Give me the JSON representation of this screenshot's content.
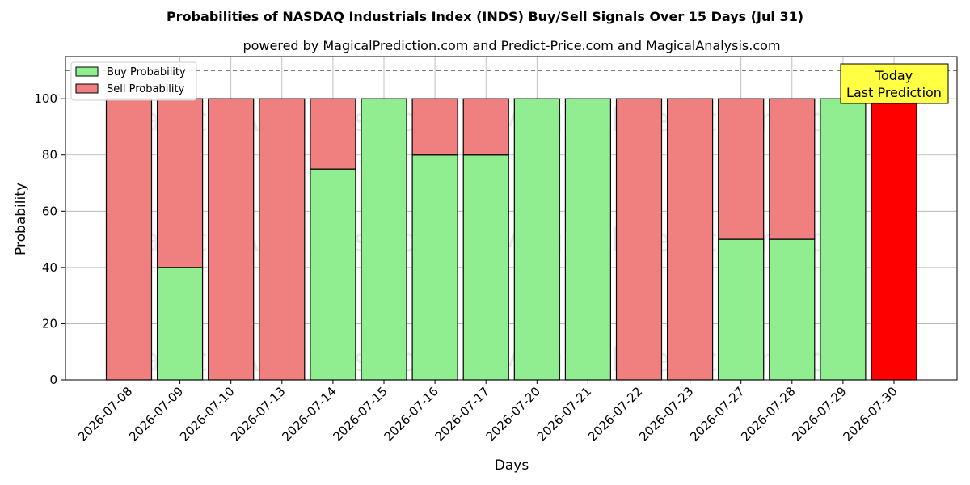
{
  "chart_data": {
    "type": "bar",
    "stacked": true,
    "title": "Probabilities of NASDAQ Industrials Index (INDS) Buy/Sell Signals Over 15 Days (Jul 31)",
    "subtitle": "powered by MagicalPrediction.com and Predict-Price.com and MagicalAnalysis.com",
    "xlabel": "Days",
    "ylabel": "Probability",
    "ylim": [
      0,
      115
    ],
    "yticks": [
      0,
      20,
      40,
      60,
      80,
      100
    ],
    "reference_line": 110,
    "grid": true,
    "legend_position": "top-left",
    "categories": [
      "2026-07-08",
      "2026-07-09",
      "2026-07-10",
      "2026-07-13",
      "2026-07-14",
      "2026-07-15",
      "2026-07-16",
      "2026-07-17",
      "2026-07-20",
      "2026-07-21",
      "2026-07-22",
      "2026-07-23",
      "2026-07-27",
      "2026-07-28",
      "2026-07-29",
      "2026-07-30"
    ],
    "series": [
      {
        "name": "Buy Probability",
        "color": "#90ee90",
        "values": [
          0,
          40,
          0,
          0,
          75,
          100,
          80,
          80,
          100,
          100,
          0,
          0,
          50,
          50,
          100,
          0
        ]
      },
      {
        "name": "Sell Probability",
        "color": "#f08080",
        "values": [
          100,
          60,
          100,
          100,
          25,
          0,
          20,
          20,
          0,
          0,
          100,
          100,
          50,
          50,
          0,
          100
        ]
      }
    ],
    "highlight": {
      "category": "2026-07-30",
      "color": "#ff0000"
    },
    "annotation": {
      "lines": [
        "Today",
        "Last Prediction"
      ],
      "background": "#ffff44"
    },
    "watermarks": [
      "MagicalAnalysis.com",
      "MagicalPrediction.com"
    ]
  }
}
